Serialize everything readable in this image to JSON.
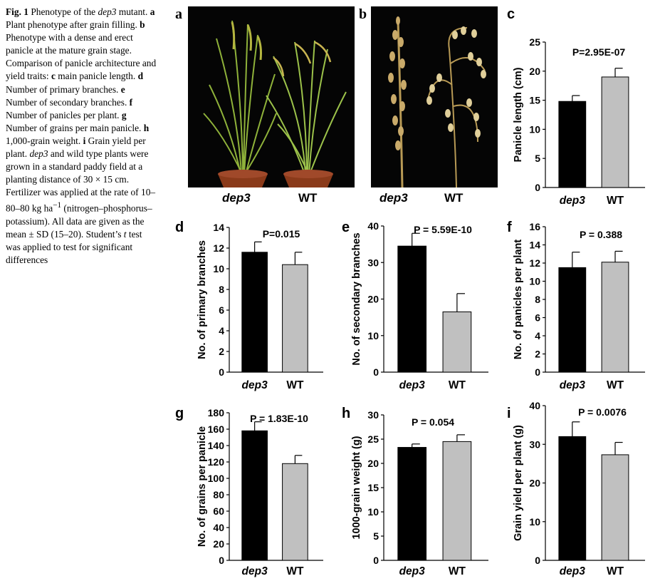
{
  "figure": {
    "caption_parts": [
      {
        "t": "Fig. 1",
        "b": true
      },
      {
        "t": "  Phenotype of the "
      },
      {
        "t": "dep3",
        "i": true
      },
      {
        "t": " mutant. "
      },
      {
        "t": "a",
        "b": true
      },
      {
        "t": " Plant phenotype after grain filling. "
      },
      {
        "t": "b",
        "b": true
      },
      {
        "t": " Phenotype with a dense and erect panicle at the mature grain stage. Comparison of panicle architecture and yield traits: "
      },
      {
        "t": "c",
        "b": true
      },
      {
        "t": " main panicle length. "
      },
      {
        "t": "d",
        "b": true
      },
      {
        "t": " Number of primary branches. "
      },
      {
        "t": "e",
        "b": true
      },
      {
        "t": " Number of secondary branches. "
      },
      {
        "t": "f",
        "b": true
      },
      {
        "t": " Number of panicles per plant. "
      },
      {
        "t": "g",
        "b": true
      },
      {
        "t": " Number of grains per main panicle. "
      },
      {
        "t": "h",
        "b": true
      },
      {
        "t": " 1,000-grain weight. "
      },
      {
        "t": "i",
        "b": true
      },
      {
        "t": " Grain yield per plant. "
      },
      {
        "t": "dep3",
        "i": true
      },
      {
        "t": " and wild type plants were grown in a standard paddy field at a planting distance of 30 × 15 cm. Fertilizer was applied at the rate of 10–80–80 kg ha"
      },
      {
        "t": "−1",
        "sup": true
      },
      {
        "t": " (nitrogen–phosphorus–potassium). All data are given as the mean ± SD (15–20). Student’s "
      },
      {
        "t": "t",
        "i": true
      },
      {
        "t": " test was applied to test for significant differences"
      }
    ],
    "photo_panels": [
      {
        "letter": "a",
        "labels": [
          "dep3",
          "WT"
        ]
      },
      {
        "letter": "b",
        "labels": [
          "dep3",
          "WT"
        ]
      }
    ]
  },
  "colors": {
    "mutant": "#000000",
    "wild_type": "#c0c0c0",
    "photo_bg": "#050505"
  },
  "chart_data": [
    {
      "panel": "c",
      "type": "bar",
      "categories": [
        "dep3",
        "WT"
      ],
      "values": [
        14.8,
        19.0
      ],
      "errors": [
        1.0,
        1.5
      ],
      "ylabel": "Panicle length (cm)",
      "ylim": [
        0,
        25
      ],
      "yticks": [
        0,
        5,
        10,
        15,
        20,
        25
      ],
      "annotation": "P=2.95E-07",
      "title": "",
      "xlabel": ""
    },
    {
      "panel": "d",
      "type": "bar",
      "categories": [
        "dep3",
        "WT"
      ],
      "values": [
        11.6,
        10.4
      ],
      "errors": [
        1.0,
        1.2
      ],
      "ylabel": "No. of primary branches",
      "ylim": [
        0,
        14
      ],
      "yticks": [
        0,
        2,
        4,
        6,
        8,
        10,
        12,
        14
      ],
      "annotation": "P=0.015",
      "title": "",
      "xlabel": ""
    },
    {
      "panel": "e",
      "type": "bar",
      "categories": [
        "dep3",
        "WT"
      ],
      "values": [
        34.5,
        16.5
      ],
      "errors": [
        3.5,
        5.0
      ],
      "ylabel": "No. of secondary branches",
      "ylim": [
        0,
        40
      ],
      "yticks": [
        0,
        10,
        20,
        30,
        40
      ],
      "annotation": "P = 5.59E-10",
      "title": "",
      "xlabel": ""
    },
    {
      "panel": "f",
      "type": "bar",
      "categories": [
        "dep3",
        "WT"
      ],
      "values": [
        11.5,
        12.1
      ],
      "errors": [
        1.7,
        1.2
      ],
      "ylabel": "No. of panicles per plant",
      "ylim": [
        0,
        16
      ],
      "yticks": [
        0,
        2,
        4,
        6,
        8,
        10,
        12,
        14,
        16
      ],
      "annotation": "P = 0.388",
      "title": "",
      "xlabel": ""
    },
    {
      "panel": "g",
      "type": "bar",
      "categories": [
        "dep3",
        "WT"
      ],
      "values": [
        158,
        118
      ],
      "errors": [
        11,
        10
      ],
      "ylabel": "No. of grains per panicle",
      "ylim": [
        0,
        180
      ],
      "yticks": [
        0,
        20,
        40,
        60,
        80,
        100,
        120,
        140,
        160,
        180
      ],
      "annotation": "P = 1.83E-10",
      "title": "",
      "xlabel": ""
    },
    {
      "panel": "h",
      "type": "bar",
      "categories": [
        "dep3",
        "WT"
      ],
      "values": [
        23.3,
        24.5
      ],
      "errors": [
        0.7,
        1.4
      ],
      "ylabel": "1000-grain weight (g)",
      "ylim": [
        0,
        30
      ],
      "yticks": [
        0,
        5,
        10,
        15,
        20,
        25,
        30
      ],
      "annotation": "P = 0.054",
      "title": "",
      "xlabel": ""
    },
    {
      "panel": "i",
      "type": "bar",
      "categories": [
        "dep3",
        "WT"
      ],
      "values": [
        32.0,
        27.3
      ],
      "errors": [
        3.8,
        3.2
      ],
      "ylabel": "Grain yield per plant (g)",
      "ylim": [
        0,
        40
      ],
      "yticks": [
        0,
        10,
        20,
        30,
        40
      ],
      "annotation": "P = 0.0076",
      "title": "",
      "xlabel": ""
    }
  ]
}
